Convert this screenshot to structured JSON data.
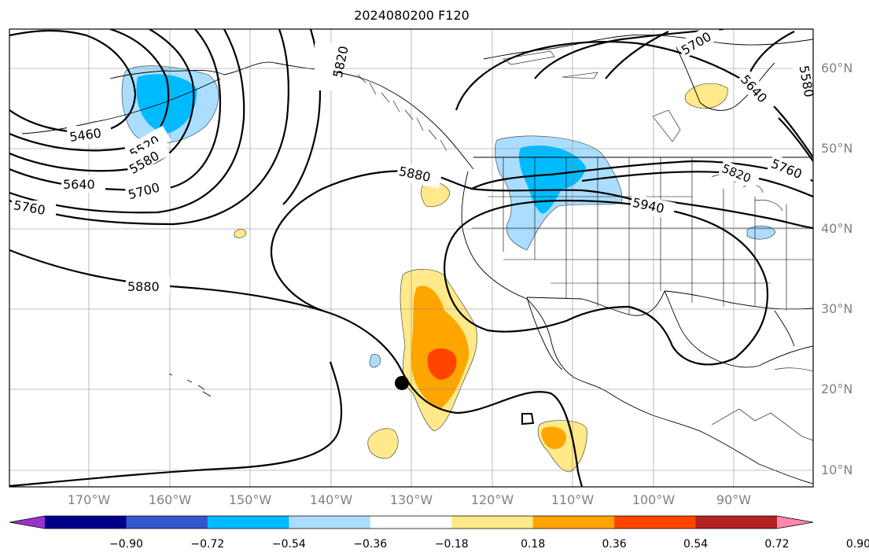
{
  "title": "2024080200 F120",
  "lat_labels": [
    "60°N",
    "50°N",
    "40°N",
    "30°N",
    "20°N",
    "10°N"
  ],
  "lon_labels": [
    "170°W",
    "160°W",
    "150°W",
    "140°W",
    "130°W",
    "120°W",
    "110°W",
    "100°W",
    "90°W"
  ],
  "contour_labels": [
    "5460",
    "5520",
    "5580",
    "5640",
    "5700",
    "5760",
    "5820",
    "5880",
    "5880",
    "5940",
    "5700",
    "5640",
    "5580",
    "5760",
    "5820"
  ],
  "colorbar": {
    "ticks": [
      "−0.90",
      "−0.72",
      "−0.54",
      "−0.36",
      "−0.18",
      "0.18",
      "0.36",
      "0.54",
      "0.72",
      "0.90"
    ],
    "colors": [
      "#9933cc",
      "#000088",
      "#3355cc",
      "#00bbff",
      "#aaddff",
      "#ffffff",
      "#ffe98a",
      "#ffa500",
      "#ff4400",
      "#b22222",
      "#ff88aa"
    ]
  },
  "legend_colors": {
    "pos_low": "#ffe98a",
    "pos_mid": "#ffa500",
    "pos_high": "#ff4400",
    "neg_low": "#aaddff",
    "neg_mid": "#00bbff"
  },
  "marker": "storm-position-dot"
}
